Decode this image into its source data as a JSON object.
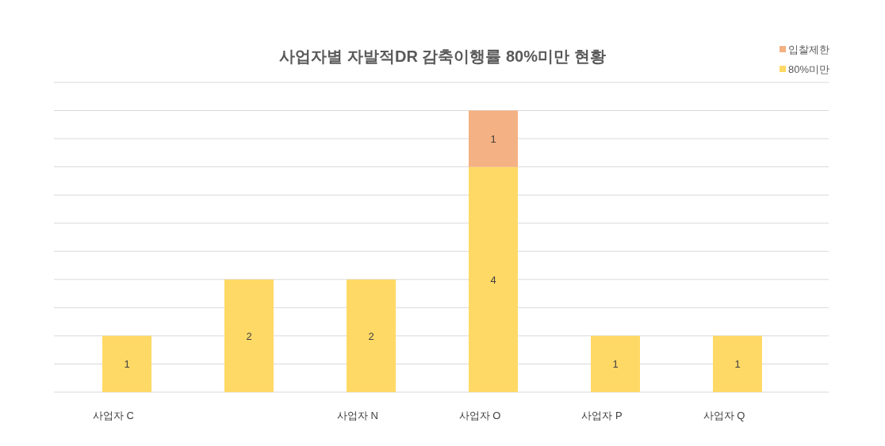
{
  "chart_data": {
    "type": "bar",
    "title": "사업자별 자발적DR 감축이행률 80%미만 현황",
    "categories": [
      "사업자 C",
      null,
      "사업자 N",
      "사업자 O",
      "사업자 P",
      "사업자 Q"
    ],
    "series": [
      {
        "name": "80%미만",
        "color": "#ffd966",
        "values": [
          1,
          2,
          2,
          4,
          1,
          1
        ]
      },
      {
        "name": "입찰제한",
        "color": "#f4b183",
        "values": [
          null,
          null,
          null,
          1,
          null,
          null
        ]
      }
    ],
    "stacked": true,
    "data_labels": true,
    "ylim": [
      0,
      5.5
    ],
    "yticks": [
      {
        "value": 0,
        "label": null
      },
      {
        "value": 0.5,
        "label": null
      },
      {
        "value": 1,
        "label": null
      },
      {
        "value": 1.5,
        "label": null
      },
      {
        "value": 2,
        "label": null
      },
      {
        "value": 2.5,
        "label": null
      },
      {
        "value": 3,
        "label": null
      },
      {
        "value": 3.5,
        "label": null
      },
      {
        "value": 4,
        "label": null
      },
      {
        "value": 4.5,
        "label": null
      },
      {
        "value": 5,
        "label": null
      },
      {
        "value": 5.5,
        "label": null
      }
    ],
    "tick_labels": "x",
    "grid": "y",
    "legend": "top right"
  }
}
